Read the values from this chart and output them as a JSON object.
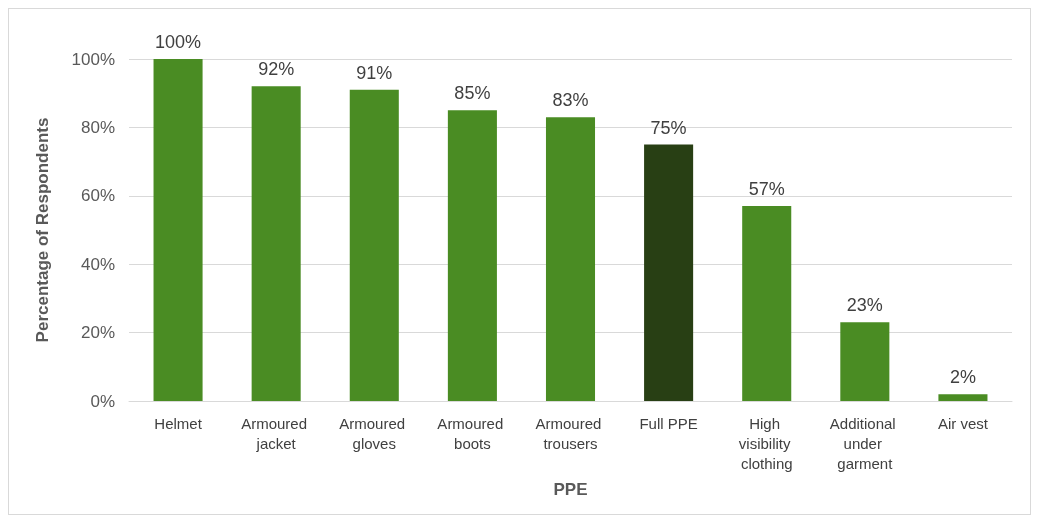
{
  "chart_data": {
    "type": "bar",
    "xlabel": "PPE",
    "ylabel": "Percentage of Respondents",
    "categories": [
      "Helmet",
      "Armoured jacket",
      "Armoured gloves",
      "Armoured boots",
      "Armoured trousers",
      "Full PPE",
      "High visibility clothing",
      "Additional under garment",
      "Air vest"
    ],
    "values": [
      100,
      92,
      91,
      85,
      83,
      75,
      57,
      23,
      2
    ],
    "colors": [
      "#4a8c23",
      "#4a8c23",
      "#4a8c23",
      "#4a8c23",
      "#4a8c23",
      "#283f14",
      "#4a8c23",
      "#4a8c23",
      "#4a8c23"
    ],
    "value_labels": [
      "100%",
      "92%",
      "91%",
      "85%",
      "83%",
      "75%",
      "57%",
      "23%",
      "2%"
    ],
    "ylim": [
      0,
      100
    ],
    "yticks": [
      {
        "value": 0,
        "label": "0%"
      },
      {
        "value": 20,
        "label": "20%"
      },
      {
        "value": 40,
        "label": "40%"
      },
      {
        "value": 60,
        "label": "60%"
      },
      {
        "value": 80,
        "label": "80%"
      },
      {
        "value": 100,
        "label": "100%"
      }
    ],
    "grid": "y"
  }
}
